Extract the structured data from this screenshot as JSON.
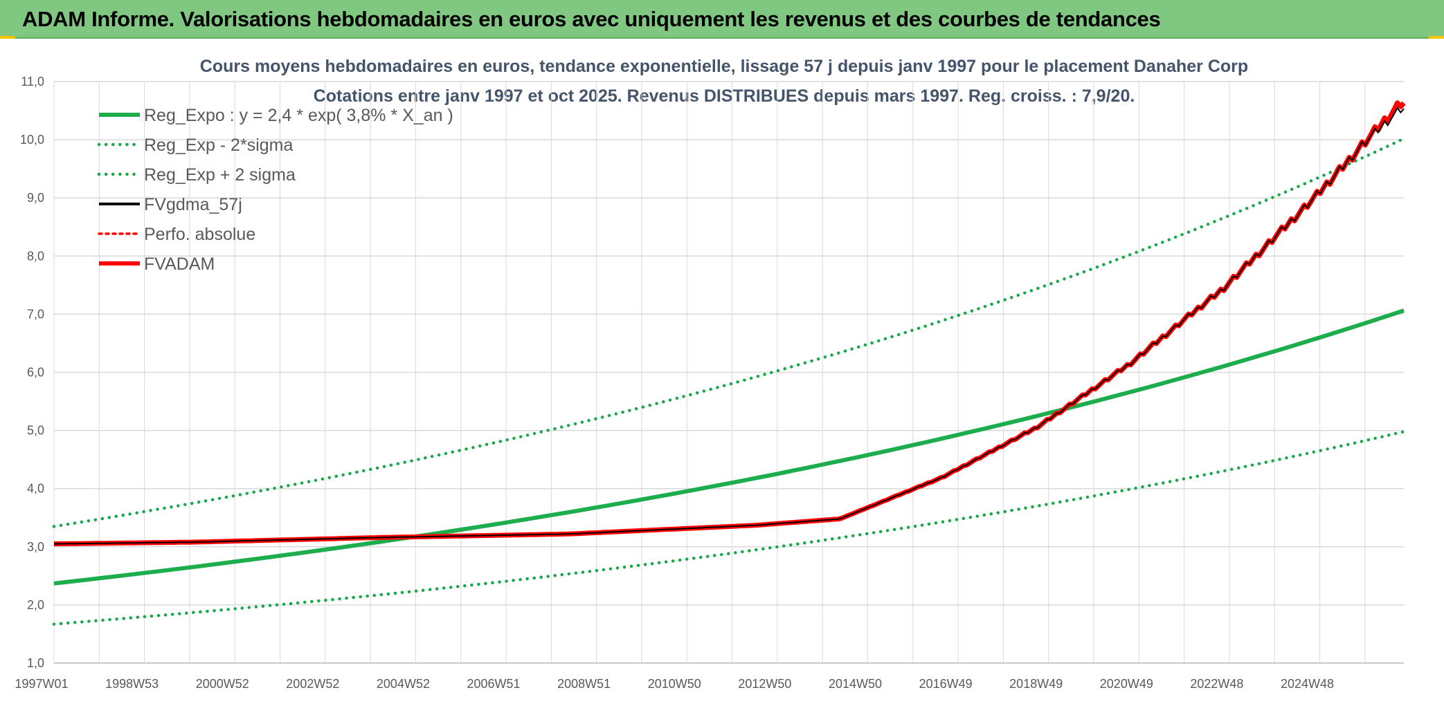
{
  "header": {
    "title": "ADAM Informe. Valorisations hebdomadaires en euros avec uniquement les revenus et des courbes de tendances"
  },
  "colors": {
    "header_bg": "#80c781",
    "green": "#1ead4c",
    "green_dotted": "#17a84a",
    "red": "#ff0000",
    "black": "#000000",
    "grid": "#d9d9d9",
    "title": "#44546a",
    "text": "#595959"
  },
  "chart_data": {
    "type": "line",
    "title": "Cours moyens hebdomadaires en euros, tendance exponentielle, lissage 57 j depuis janv 1997 pour le placement Danaher Corp",
    "subtitle": "Cotations entre janv 1997 et oct 2025. Revenus DISTRIBUES depuis mars 1997. Reg. croiss. : 7,9/20.",
    "xlabel": "",
    "ylabel": "",
    "ylim": [
      1.0,
      11.0
    ],
    "y_ticks": [
      "1,0",
      "2,0",
      "3,0",
      "4,0",
      "5,0",
      "6,0",
      "7,0",
      "8,0",
      "9,0",
      "10,0",
      "11,0"
    ],
    "x_ticks": [
      "1997W01",
      "1998W53",
      "2000W52",
      "2002W52",
      "2004W52",
      "2006W51",
      "2008W51",
      "2010W50",
      "2012W50",
      "2014W50",
      "2016W49",
      "2018W49",
      "2020W49",
      "2022W48",
      "2024W48"
    ],
    "x_range": [
      "1997W01",
      "2025W43"
    ],
    "grid": true,
    "legend_position": "top-left",
    "series": [
      {
        "name": "Reg_Expo : y = 2,4 * exp( 3,8% *  X_an )",
        "style": "solid-thick",
        "color": "#1ead4c",
        "x": [
          1997.0,
          2000.0,
          2004.0,
          2008.0,
          2012.0,
          2016.0,
          2020.0,
          2024.0,
          2025.8
        ],
        "values": [
          2.37,
          2.72,
          3.19,
          3.69,
          4.3,
          4.97,
          5.8,
          6.7,
          7.05
        ]
      },
      {
        "name": "Reg_Exp - 2*sigma",
        "style": "dotted",
        "color": "#17a84a",
        "x": [
          1997.0,
          2000.0,
          2004.0,
          2008.0,
          2012.0,
          2016.0,
          2020.0,
          2024.0,
          2025.8
        ],
        "values": [
          1.67,
          1.92,
          2.25,
          2.6,
          3.03,
          3.51,
          4.08,
          4.72,
          4.97
        ]
      },
      {
        "name": "Reg_Exp + 2 sigma",
        "style": "dotted",
        "color": "#17a84a",
        "x": [
          1997.0,
          2000.0,
          2004.0,
          2008.0,
          2012.0,
          2016.0,
          2020.0,
          2024.0,
          2025.8
        ],
        "values": [
          3.35,
          3.85,
          4.52,
          5.23,
          6.08,
          7.05,
          8.21,
          9.5,
          10.0
        ]
      },
      {
        "name": "FVgdma_57j",
        "style": "solid",
        "color": "#000000",
        "x": [
          1997.0,
          2000.0,
          2004.0,
          2008.0,
          2012.0,
          2013.8,
          2016.0,
          2018.0,
          2020.0,
          2022.0,
          2024.0,
          2025.0,
          2025.8
        ],
        "values": [
          3.05,
          3.08,
          3.16,
          3.22,
          3.37,
          3.48,
          4.2,
          5.05,
          6.15,
          7.45,
          9.05,
          9.95,
          10.55
        ]
      },
      {
        "name": "Perfo. absolue",
        "style": "dotted",
        "color": "#ff0000",
        "x": [],
        "values": []
      },
      {
        "name": "FVADAM",
        "style": "solid-thick-stepped",
        "color": "#ff0000",
        "x": [
          1997.0,
          2000.0,
          2004.0,
          2008.0,
          2012.0,
          2013.8,
          2016.0,
          2018.0,
          2020.0,
          2022.0,
          2024.0,
          2025.0,
          2025.8
        ],
        "values": [
          3.05,
          3.08,
          3.16,
          3.22,
          3.37,
          3.48,
          4.2,
          5.05,
          6.15,
          7.45,
          9.05,
          9.95,
          10.65
        ]
      }
    ]
  }
}
